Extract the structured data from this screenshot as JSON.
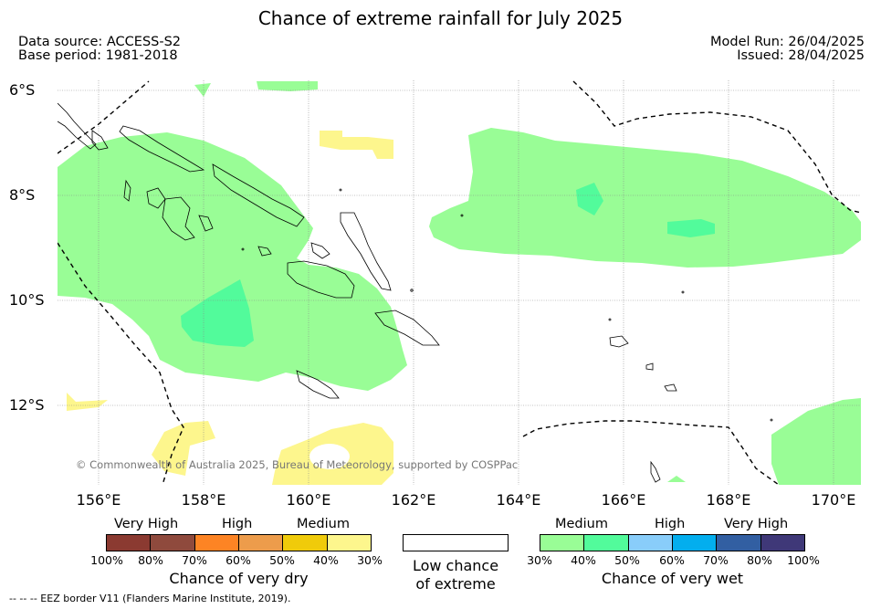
{
  "header": {
    "title": "Chance of extreme rainfall for July 2025",
    "data_source": "Data source: ACCESS-S2",
    "base_period": "Base period: 1981-2018",
    "model_run": "Model Run: 26/04/2025",
    "issued": "Issued: 28/04/2025"
  },
  "map": {
    "lat_labels": [
      "6°S",
      "8°S",
      "10°S",
      "12°S"
    ],
    "lon_labels": [
      "156°E",
      "158°E",
      "160°E",
      "162°E",
      "164°E",
      "166°E",
      "168°E",
      "170°E"
    ],
    "copyright": "© Commonwealth of Australia 2025, Bureau of Meteorology, supported by COSPPac",
    "colors": {
      "wet_medium": "#99fd96",
      "wet_medium_high": "#52fb9b",
      "dry_medium": "#fdf68d",
      "coastline": "#000000",
      "eez_border": "#000000"
    }
  },
  "legend": {
    "dry": {
      "categories": [
        "Very High",
        "High",
        "Medium"
      ],
      "colors": [
        "#8b3a31",
        "#8f4a3d",
        "#fd8424",
        "#ed9c4b",
        "#f0cb0a",
        "#fdf68d"
      ],
      "ticks": [
        "100%",
        "80%",
        "70%",
        "60%",
        "50%",
        "40%",
        "30%"
      ],
      "caption": "Chance of very dry"
    },
    "low": {
      "caption_line1": "Low chance",
      "caption_line2": "of extreme",
      "color": "#ffffff"
    },
    "wet": {
      "categories": [
        "Medium",
        "High",
        "Very High"
      ],
      "colors": [
        "#99fd96",
        "#52fb9b",
        "#89cdfa",
        "#03aeee",
        "#325fa2",
        "#3f3878"
      ],
      "ticks": [
        "30%",
        "40%",
        "50%",
        "60%",
        "70%",
        "80%",
        "100%"
      ],
      "caption": "Chance of very wet"
    }
  },
  "footnote": "--  --  -- EEZ border V11 (Flanders Marine Institute, 2019)."
}
